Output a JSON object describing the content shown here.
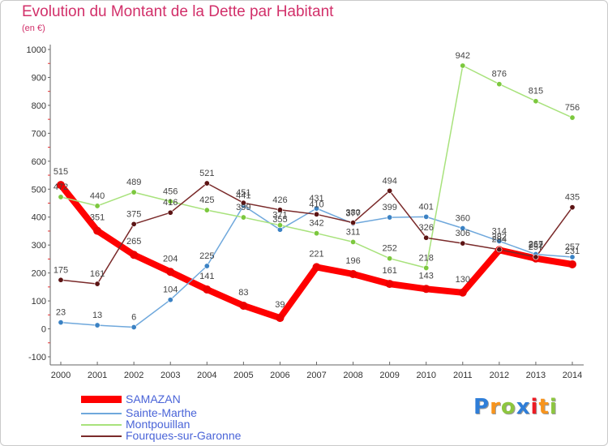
{
  "chart_data": {
    "type": "line",
    "title": "Evolution du Montant de la Dette par Habitant",
    "subtitle": "(en €)",
    "xlabel": "",
    "ylabel": "",
    "x": [
      "2000",
      "2001",
      "2002",
      "2003",
      "2004",
      "2005",
      "2006",
      "2007",
      "2008",
      "2009",
      "2010",
      "2011",
      "2012",
      "2013",
      "2014"
    ],
    "ylim": [
      -100,
      1000
    ],
    "yticks": [
      -100,
      0,
      100,
      200,
      300,
      400,
      500,
      600,
      700,
      800,
      900,
      1000
    ],
    "grid": false,
    "legend": "bottom-left",
    "series": [
      {
        "name": "SAMAZAN",
        "color": "#ff0000",
        "marker_color": "#ee0000",
        "values": [
          515,
          351,
          265,
          204,
          141,
          83,
          39,
          221,
          196,
          161,
          143,
          130,
          282,
          252,
          231
        ]
      },
      {
        "name": "Sainte-Marthe",
        "color": "#6fa8dc",
        "marker_color": "#3b82c4",
        "values": [
          23,
          13,
          6,
          104,
          225,
          441,
          355,
          431,
          377,
          399,
          401,
          360,
          314,
          267,
          257
        ]
      },
      {
        "name": "Montpouillan",
        "color": "#a8e27c",
        "marker_color": "#7cc83e",
        "values": [
          472,
          440,
          489,
          456,
          425,
          399,
          371,
          342,
          311,
          252,
          218,
          942,
          876,
          815,
          756
        ]
      },
      {
        "name": "Fourques-sur-Garonne",
        "color": "#7a2a2a",
        "marker_color": "#5c1414",
        "values": [
          175,
          161,
          375,
          416,
          521,
          451,
          426,
          410,
          380,
          494,
          326,
          306,
          284,
          257,
          435
        ]
      }
    ]
  },
  "colors": {
    "title": "#d2306a",
    "legend_text": "#4a64d8",
    "axis": "#666666",
    "minor_tick": "#e03030",
    "data_label": "#444444"
  },
  "logo": {
    "text": "Proxiti",
    "letter_colors": [
      "#2f7ed8",
      "#f7941d",
      "#8dc63f",
      "#2f7ed8",
      "#ed1c24",
      "#f7941d",
      "#8dc63f"
    ]
  }
}
